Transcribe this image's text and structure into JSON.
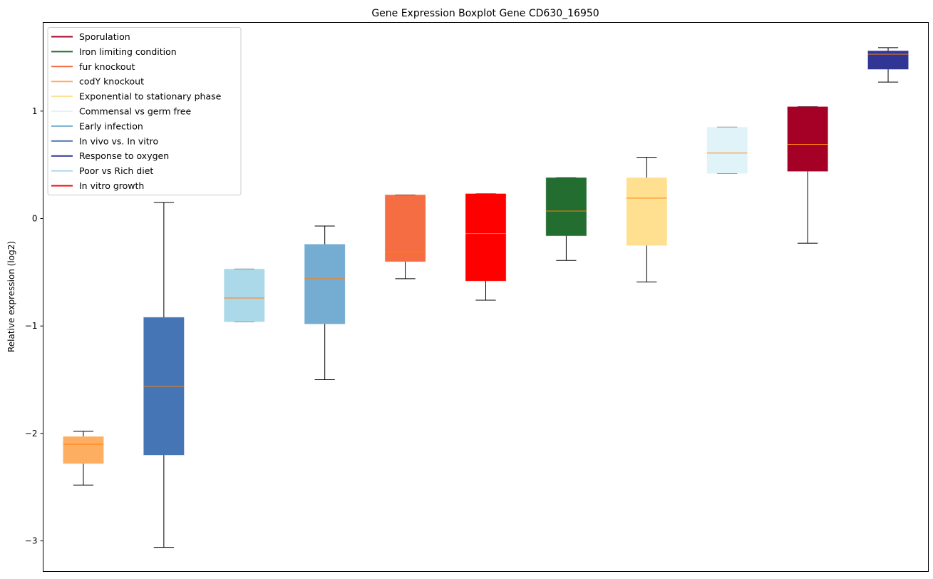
{
  "chart_data": {
    "type": "box",
    "title": "Gene Expression Boxplot Gene CD630_16950",
    "xlabel": "",
    "ylabel": "Relative expression (log2)",
    "ylim": [
      -3.285,
      1.825
    ],
    "yticks": [
      -3,
      -2,
      -1,
      0,
      1
    ],
    "ytick_labels": [
      "−3",
      "−2",
      "−1",
      "0",
      "1"
    ],
    "grid": false,
    "legend_position": "top-left",
    "median_color": "#ff7f0e",
    "legend": [
      {
        "label": "Sporulation",
        "color": "#a50026"
      },
      {
        "label": "Iron limiting condition",
        "color": "#226d2f"
      },
      {
        "label": "fur knockout",
        "color": "#f46d43"
      },
      {
        "label": "codY knockout",
        "color": "#fdae61"
      },
      {
        "label": "Exponential to stationary phase",
        "color": "#fee090"
      },
      {
        "label": "Commensal vs germ free",
        "color": "#e0f3f8"
      },
      {
        "label": "Early infection",
        "color": "#74add1"
      },
      {
        "label": "In vivo vs. In vitro",
        "color": "#4575b4"
      },
      {
        "label": "Response to oxygen",
        "color": "#313695"
      },
      {
        "label": "Poor vs Rich diet",
        "color": "#abd9e9"
      },
      {
        "label": "In vitro growth",
        "color": "#ff0000"
      }
    ],
    "boxes": [
      {
        "name": "codY knockout",
        "color": "#fdae61",
        "whislo": -2.48,
        "q1": -2.28,
        "med": -2.1,
        "q3": -2.03,
        "whishi": -1.98
      },
      {
        "name": "In vivo vs. In vitro",
        "color": "#4575b4",
        "whislo": -3.06,
        "q1": -2.2,
        "med": -1.56,
        "q3": -0.92,
        "whishi": 0.15
      },
      {
        "name": "Poor vs Rich diet",
        "color": "#abd9e9",
        "whislo": -0.96,
        "q1": -0.96,
        "med": -0.74,
        "q3": -0.47,
        "whishi": -0.47
      },
      {
        "name": "Early infection",
        "color": "#74add1",
        "whislo": -1.5,
        "q1": -0.98,
        "med": -0.56,
        "q3": -0.24,
        "whishi": -0.07
      },
      {
        "name": "fur knockout",
        "color": "#f46d43",
        "whislo": -0.56,
        "q1": -0.4,
        "med": -0.31,
        "q3": 0.22,
        "whishi": 0.22
      },
      {
        "name": "In vitro growth",
        "color": "#ff0000",
        "whislo": -0.76,
        "q1": -0.58,
        "med": -0.14,
        "q3": 0.23,
        "whishi": 0.23
      },
      {
        "name": "Iron limiting condition",
        "color": "#226d2f",
        "whislo": -0.39,
        "q1": -0.16,
        "med": 0.07,
        "q3": 0.38,
        "whishi": 0.38
      },
      {
        "name": "Exponential to stationary phase",
        "color": "#fee090",
        "whislo": -0.59,
        "q1": -0.25,
        "med": 0.19,
        "q3": 0.38,
        "whishi": 0.57
      },
      {
        "name": "Commensal vs germ free",
        "color": "#e0f3f8",
        "whislo": 0.42,
        "q1": 0.42,
        "med": 0.61,
        "q3": 0.85,
        "whishi": 0.85
      },
      {
        "name": "Sporulation",
        "color": "#a50026",
        "whislo": -0.23,
        "q1": 0.44,
        "med": 0.69,
        "q3": 1.04,
        "whishi": 1.04
      },
      {
        "name": "Response to oxygen",
        "color": "#313695",
        "whislo": 1.27,
        "q1": 1.39,
        "med": 1.53,
        "q3": 1.56,
        "whishi": 1.59
      }
    ]
  }
}
